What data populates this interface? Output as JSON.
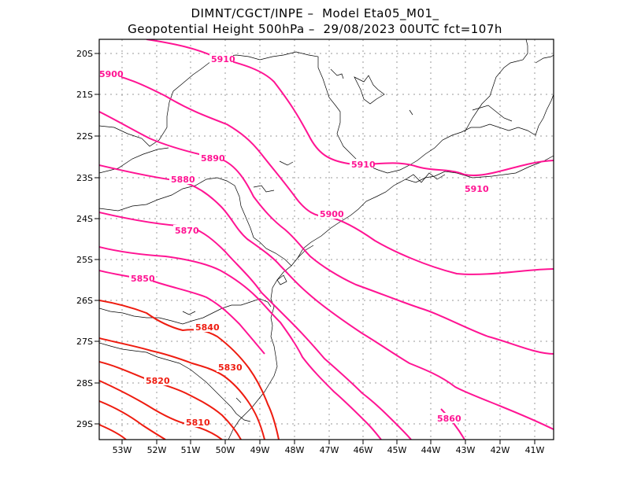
{
  "title_line1": "DIMNT/CGCT/INPE –  Model Eta05_M01_",
  "title_line2": "Geopotential Height 500hPa –  29/08/2023 00UTC fct=107h",
  "map_data": {
    "variable": "Geopotential Height 500hPa",
    "units": "m",
    "contour_interval": 10,
    "lon_range": [
      -53.6,
      -40.6
    ],
    "lat_range": [
      -29.4,
      -19.8
    ],
    "lat_ticks": [
      "20S",
      "21S",
      "22S",
      "23S",
      "24S",
      "25S",
      "26S",
      "27S",
      "28S",
      "29S"
    ],
    "lon_ticks": [
      "53W",
      "52W",
      "51W",
      "50W",
      "49W",
      "48W",
      "47W",
      "46W",
      "45W",
      "44W",
      "43W",
      "42W",
      "41W"
    ],
    "contour_labels": [
      "5910",
      "5900",
      "5890",
      "5880",
      "5870",
      "5860",
      "5850",
      "5840",
      "5830",
      "5820",
      "5810"
    ],
    "colors": {
      "magenta": "#ff1493",
      "red": "#ff0000",
      "grid": "#9a9a9a",
      "coast": "#000000"
    }
  }
}
